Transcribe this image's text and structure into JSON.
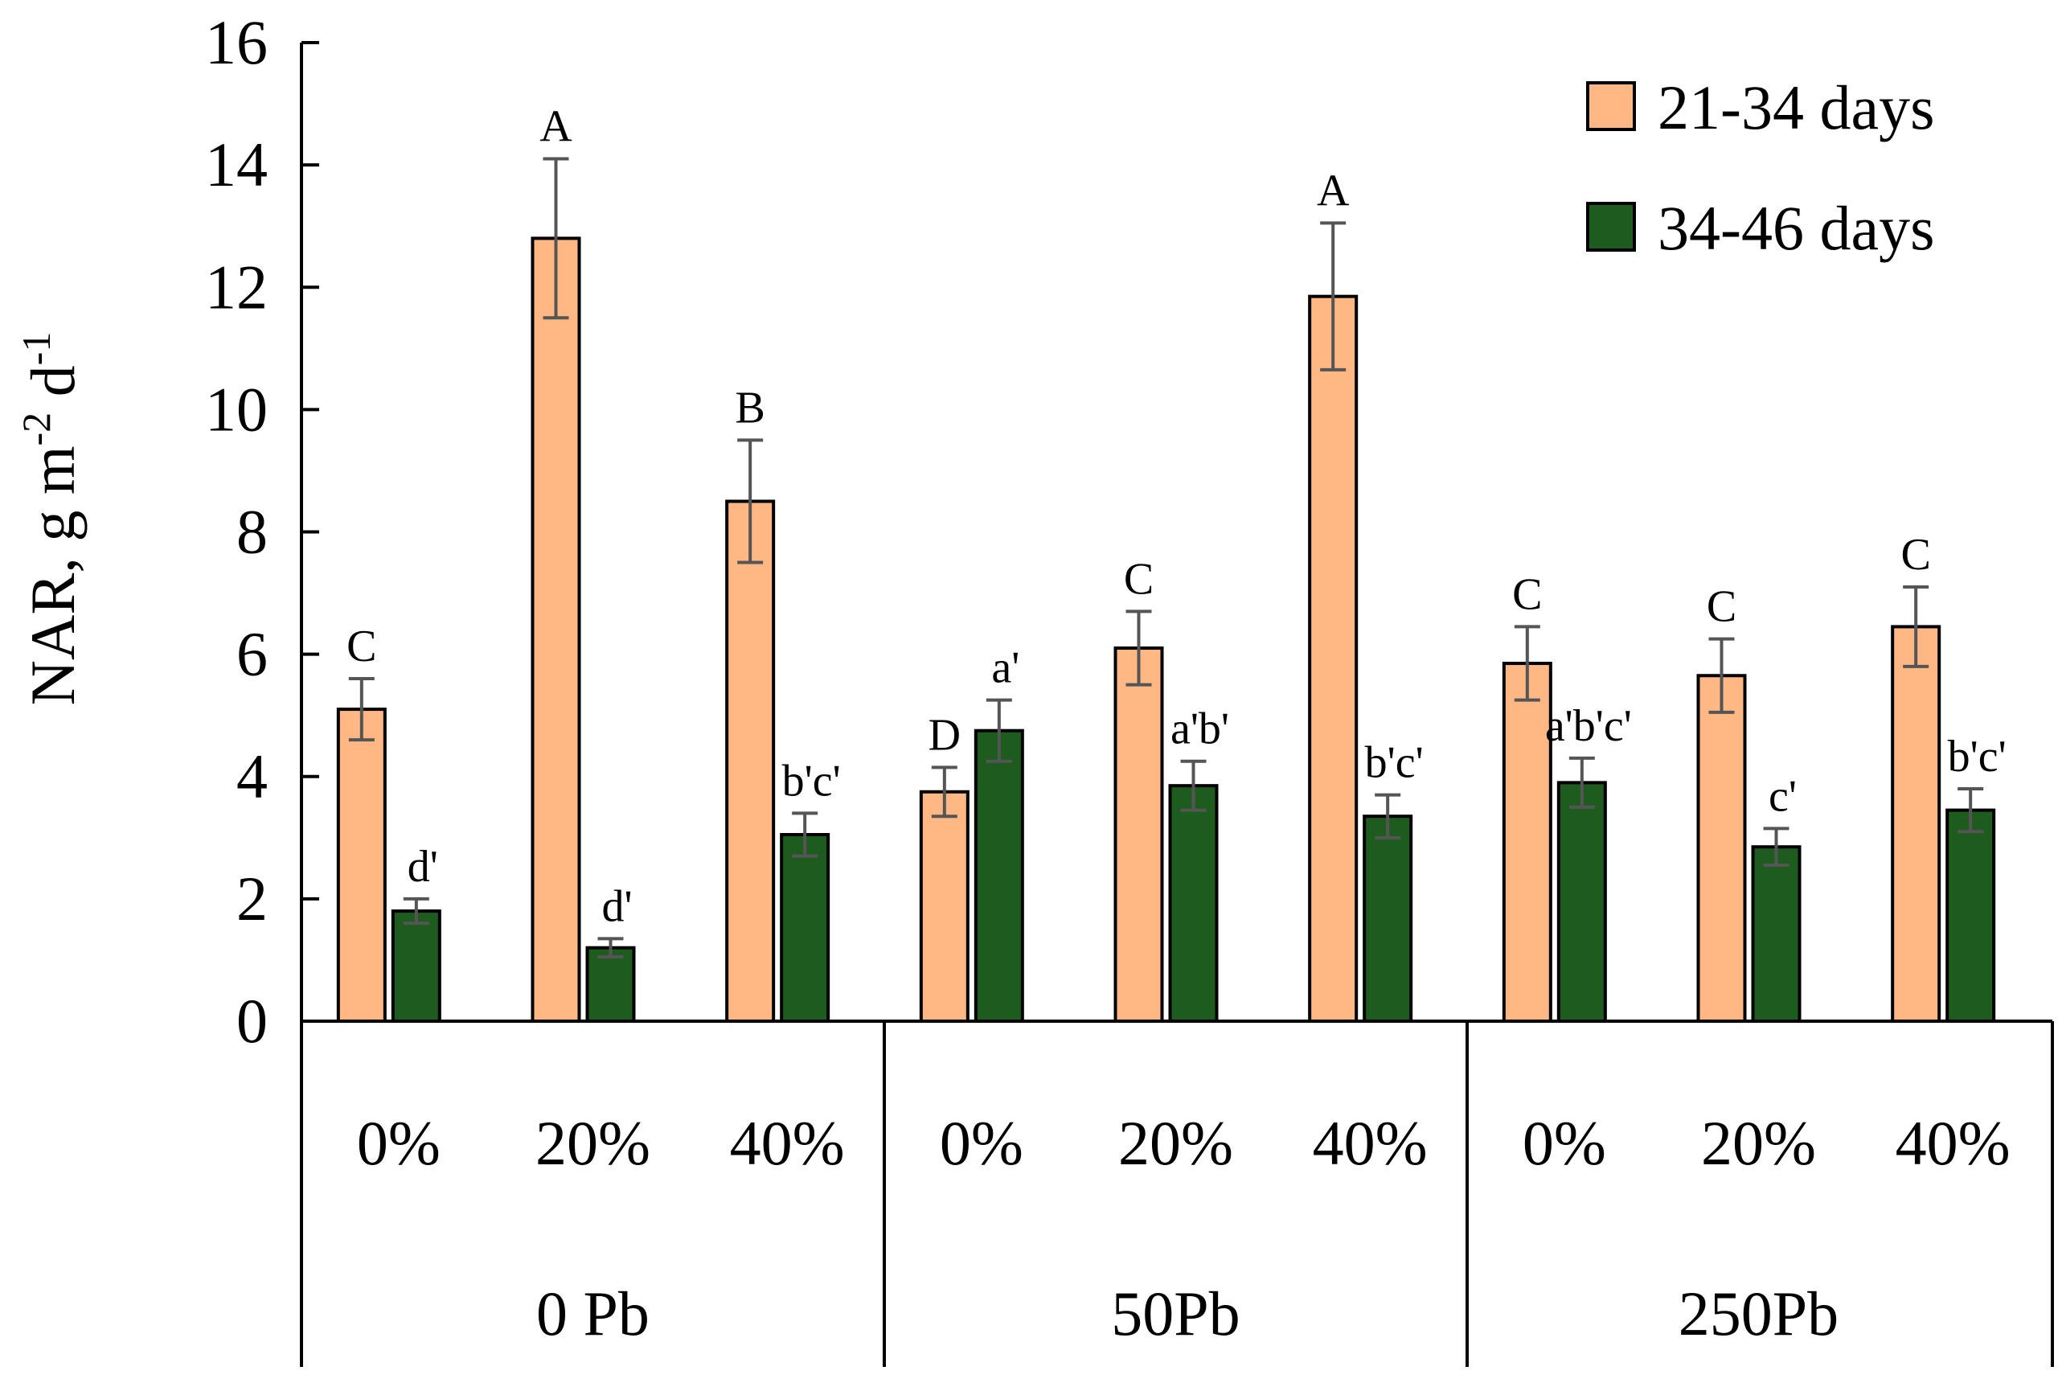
{
  "chart_data": {
    "type": "bar",
    "ylabel": "NAR, g m",
    "ylabel_sup1": "-2",
    "ylabel_mid": " d",
    "ylabel_sup2": "-1",
    "ylim": [
      0,
      16
    ],
    "yticks": [
      0,
      2,
      4,
      6,
      8,
      10,
      12,
      14,
      16
    ],
    "yticklabels": [
      "0",
      "2",
      "4",
      "6",
      "8",
      "10",
      "12",
      "14",
      "16"
    ],
    "groups": [
      {
        "label": "0 Pb",
        "categories": [
          "0%",
          "20%",
          "40%"
        ]
      },
      {
        "label": "50Pb",
        "categories": [
          "0%",
          "20%",
          "40%"
        ]
      },
      {
        "label": "250Pb",
        "categories": [
          "0%",
          "20%",
          "40%"
        ]
      }
    ],
    "series": [
      {
        "name": "21-34 days",
        "color": "#FFB784",
        "values": [
          5.1,
          12.8,
          8.5,
          3.75,
          6.1,
          11.85,
          5.85,
          5.65,
          6.45
        ],
        "errors": [
          0.5,
          1.3,
          1.0,
          0.4,
          0.6,
          1.2,
          0.6,
          0.6,
          0.65
        ],
        "labels": [
          "C",
          "A",
          "B",
          "D",
          "C",
          "A",
          "C",
          "C",
          "C"
        ]
      },
      {
        "name": "34-46 days",
        "color": "#1E5B1E",
        "values": [
          1.8,
          1.2,
          3.05,
          4.75,
          3.85,
          3.35,
          3.9,
          2.85,
          3.45
        ],
        "errors": [
          0.2,
          0.15,
          0.35,
          0.5,
          0.4,
          0.35,
          0.4,
          0.3,
          0.35
        ],
        "labels": [
          "d'",
          "d'",
          "b'c'",
          "a'",
          "a'b'",
          "b'c'",
          "a'b'c'",
          "c'",
          "b'c'"
        ]
      }
    ],
    "legend": {
      "position": "top-right"
    }
  }
}
